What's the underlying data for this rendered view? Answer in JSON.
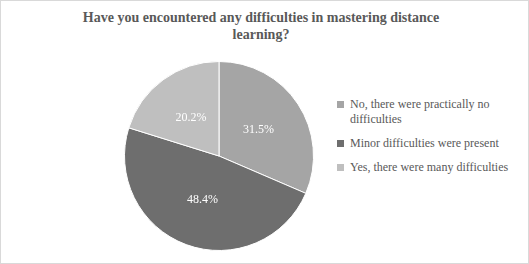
{
  "chart_data": {
    "type": "pie",
    "title": "Have you encountered any difficulties in mastering distance learning?",
    "categories": [
      "No, there were practically no difficulties",
      "Minor difficulties were present",
      "Yes, there were many difficulties"
    ],
    "values": [
      31.5,
      48.4,
      20.2
    ],
    "value_labels": [
      "31.5%",
      "48.4%",
      "20.2%"
    ],
    "colors": [
      "#a5a5a5",
      "#6e6e6e",
      "#bfbfbf"
    ],
    "data_labels": true,
    "legend": "right"
  }
}
